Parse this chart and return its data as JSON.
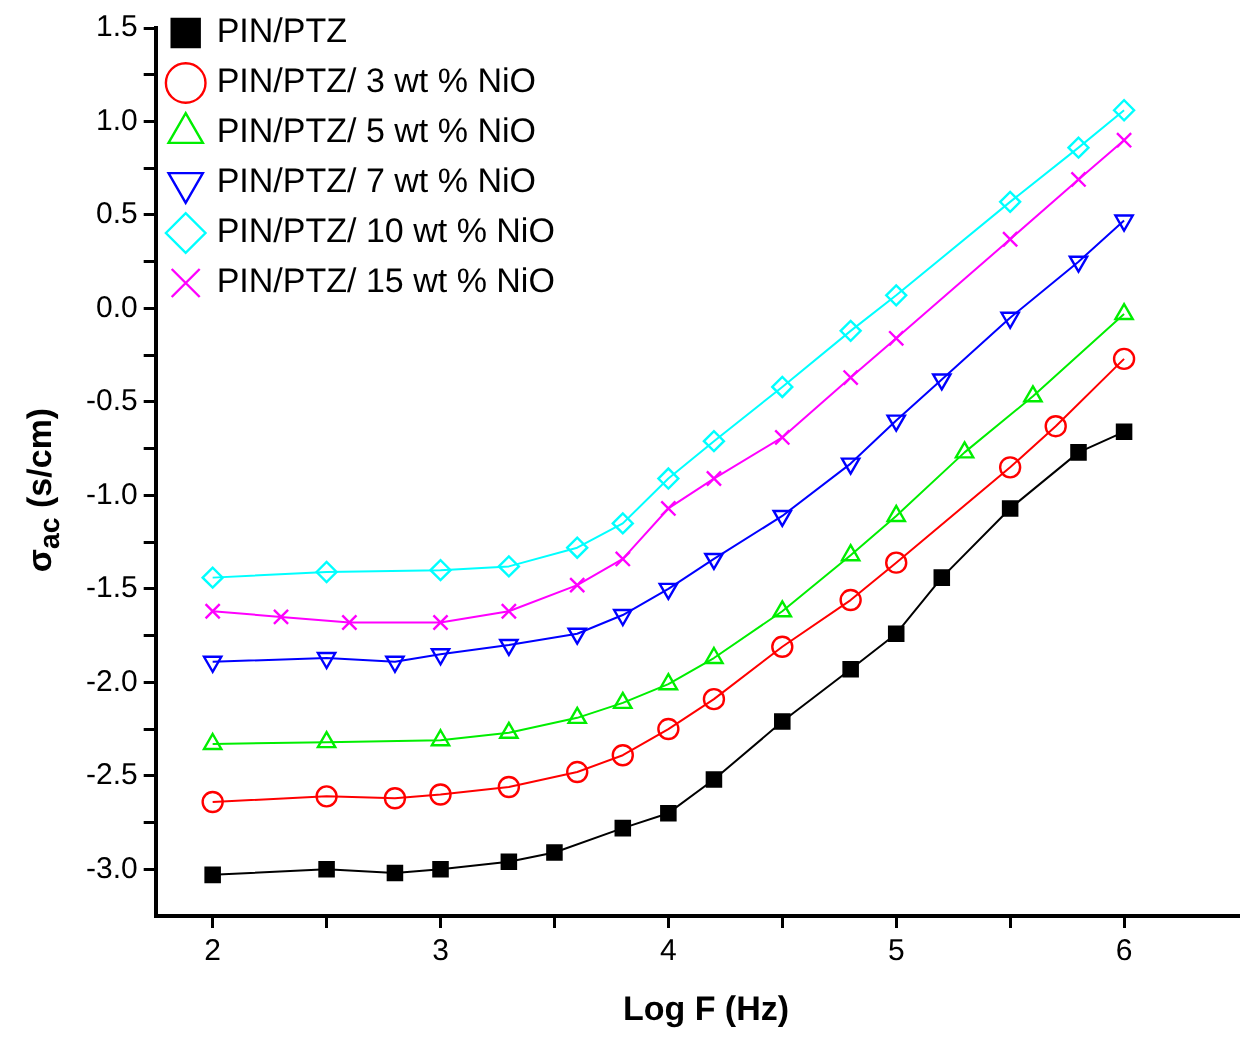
{
  "chart_data": {
    "type": "line",
    "xlabel": "Log F (Hz)",
    "ylabel": "σ$_{ac}$ (s/cm)",
    "xlim": [
      1.75,
      6.5
    ],
    "ylim": [
      -3.25,
      1.5
    ],
    "xticks": [
      2,
      {
        "value": 2.5,
        "label": null
      },
      3,
      {
        "value": 3.5,
        "label": null
      },
      4,
      {
        "value": 4.5,
        "label": null
      },
      5,
      {
        "value": 5.5,
        "label": null
      },
      6
    ],
    "yticks": [
      {
        "value": -3,
        "label": "-3.0"
      },
      {
        "value": -2.75,
        "label": null
      },
      -2.5,
      {
        "value": -2.25,
        "label": null
      },
      {
        "value": -2,
        "label": "-2.0"
      },
      {
        "value": -1.75,
        "label": null
      },
      -1.5,
      {
        "value": -1.25,
        "label": null
      },
      {
        "value": -1,
        "label": "-1.0"
      },
      {
        "value": -0.75,
        "label": null
      },
      -0.5,
      {
        "value": -0.25,
        "label": null
      },
      {
        "value": 0,
        "label": "0.0"
      },
      {
        "value": 0.25,
        "label": null
      },
      0.5,
      {
        "value": 0.75,
        "label": null
      },
      {
        "value": 1,
        "label": "1.0"
      },
      {
        "value": 1.25,
        "label": null
      },
      1.5
    ],
    "grid": false,
    "legend": "top left",
    "line_style": "solid",
    "series": [
      {
        "name": "PIN/PTZ",
        "color": "#000000",
        "marker": "square",
        "x": [
          2,
          2.5,
          2.8,
          3,
          3.3,
          3.5,
          3.8,
          4,
          4.2,
          4.5,
          4.8,
          5,
          5.2,
          5.5,
          5.8,
          6
        ],
        "values": [
          -3.03,
          -3.0,
          -3.02,
          -3.0,
          -2.96,
          -2.91,
          -2.78,
          -2.7,
          -2.52,
          -2.21,
          -1.93,
          -1.74,
          -1.44,
          -1.07,
          -0.77,
          -0.66
        ]
      },
      {
        "name": "PIN/PTZ/ 3 wt % NiO",
        "color": "#ff0000",
        "marker": "circle",
        "x": [
          2,
          2.5,
          2.8,
          3,
          3.3,
          3.6,
          3.8,
          4,
          4.2,
          4.5,
          4.8,
          5,
          5.5,
          5.7,
          6
        ],
        "values": [
          -2.64,
          -2.61,
          -2.62,
          -2.6,
          -2.56,
          -2.48,
          -2.39,
          -2.25,
          -2.09,
          -1.81,
          -1.56,
          -1.36,
          -0.85,
          -0.63,
          -0.27
        ]
      },
      {
        "name": "PIN/PTZ/ 5 wt % NiO",
        "color": "#00ee00",
        "marker": "triangle",
        "x": [
          2,
          2.5,
          3,
          3.3,
          3.6,
          3.8,
          4,
          4.2,
          4.5,
          4.8,
          5,
          5.3,
          5.6,
          6
        ],
        "values": [
          -2.33,
          -2.32,
          -2.31,
          -2.27,
          -2.19,
          -2.11,
          -2.01,
          -1.87,
          -1.62,
          -1.32,
          -1.11,
          -0.77,
          -0.47,
          -0.03
        ]
      },
      {
        "name": "PIN/PTZ/ 7 wt % NiO",
        "color": "#0000ff",
        "marker": "triangle-down",
        "x": [
          2,
          2.5,
          2.8,
          3,
          3.3,
          3.6,
          3.8,
          4,
          4.2,
          4.5,
          4.8,
          5,
          5.2,
          5.5,
          5.8,
          6
        ],
        "values": [
          -1.89,
          -1.87,
          -1.89,
          -1.85,
          -1.8,
          -1.74,
          -1.64,
          -1.5,
          -1.34,
          -1.11,
          -0.83,
          -0.6,
          -0.38,
          -0.05,
          0.25,
          0.47
        ]
      },
      {
        "name": "PIN/PTZ/ 10 wt % NiO",
        "color": "#00ffff",
        "marker": "diamond",
        "x": [
          2,
          2.5,
          3,
          3.3,
          3.6,
          3.8,
          4,
          4.2,
          4.5,
          4.8,
          5,
          5.5,
          5.8,
          6
        ],
        "values": [
          -1.44,
          -1.41,
          -1.4,
          -1.38,
          -1.28,
          -1.15,
          -0.91,
          -0.71,
          -0.42,
          -0.12,
          0.07,
          0.57,
          0.86,
          1.06
        ]
      },
      {
        "name": "PIN/PTZ/ 15 wt % NiO",
        "color": "#ff00ff",
        "marker": "cross",
        "x": [
          2,
          2.3,
          2.6,
          3,
          3.3,
          3.6,
          3.8,
          4,
          4.2,
          4.5,
          4.8,
          5,
          5.5,
          5.8,
          6
        ],
        "values": [
          -1.62,
          -1.65,
          -1.68,
          -1.68,
          -1.62,
          -1.48,
          -1.34,
          -1.07,
          -0.91,
          -0.69,
          -0.37,
          -0.16,
          0.37,
          0.69,
          0.9
        ]
      }
    ]
  }
}
